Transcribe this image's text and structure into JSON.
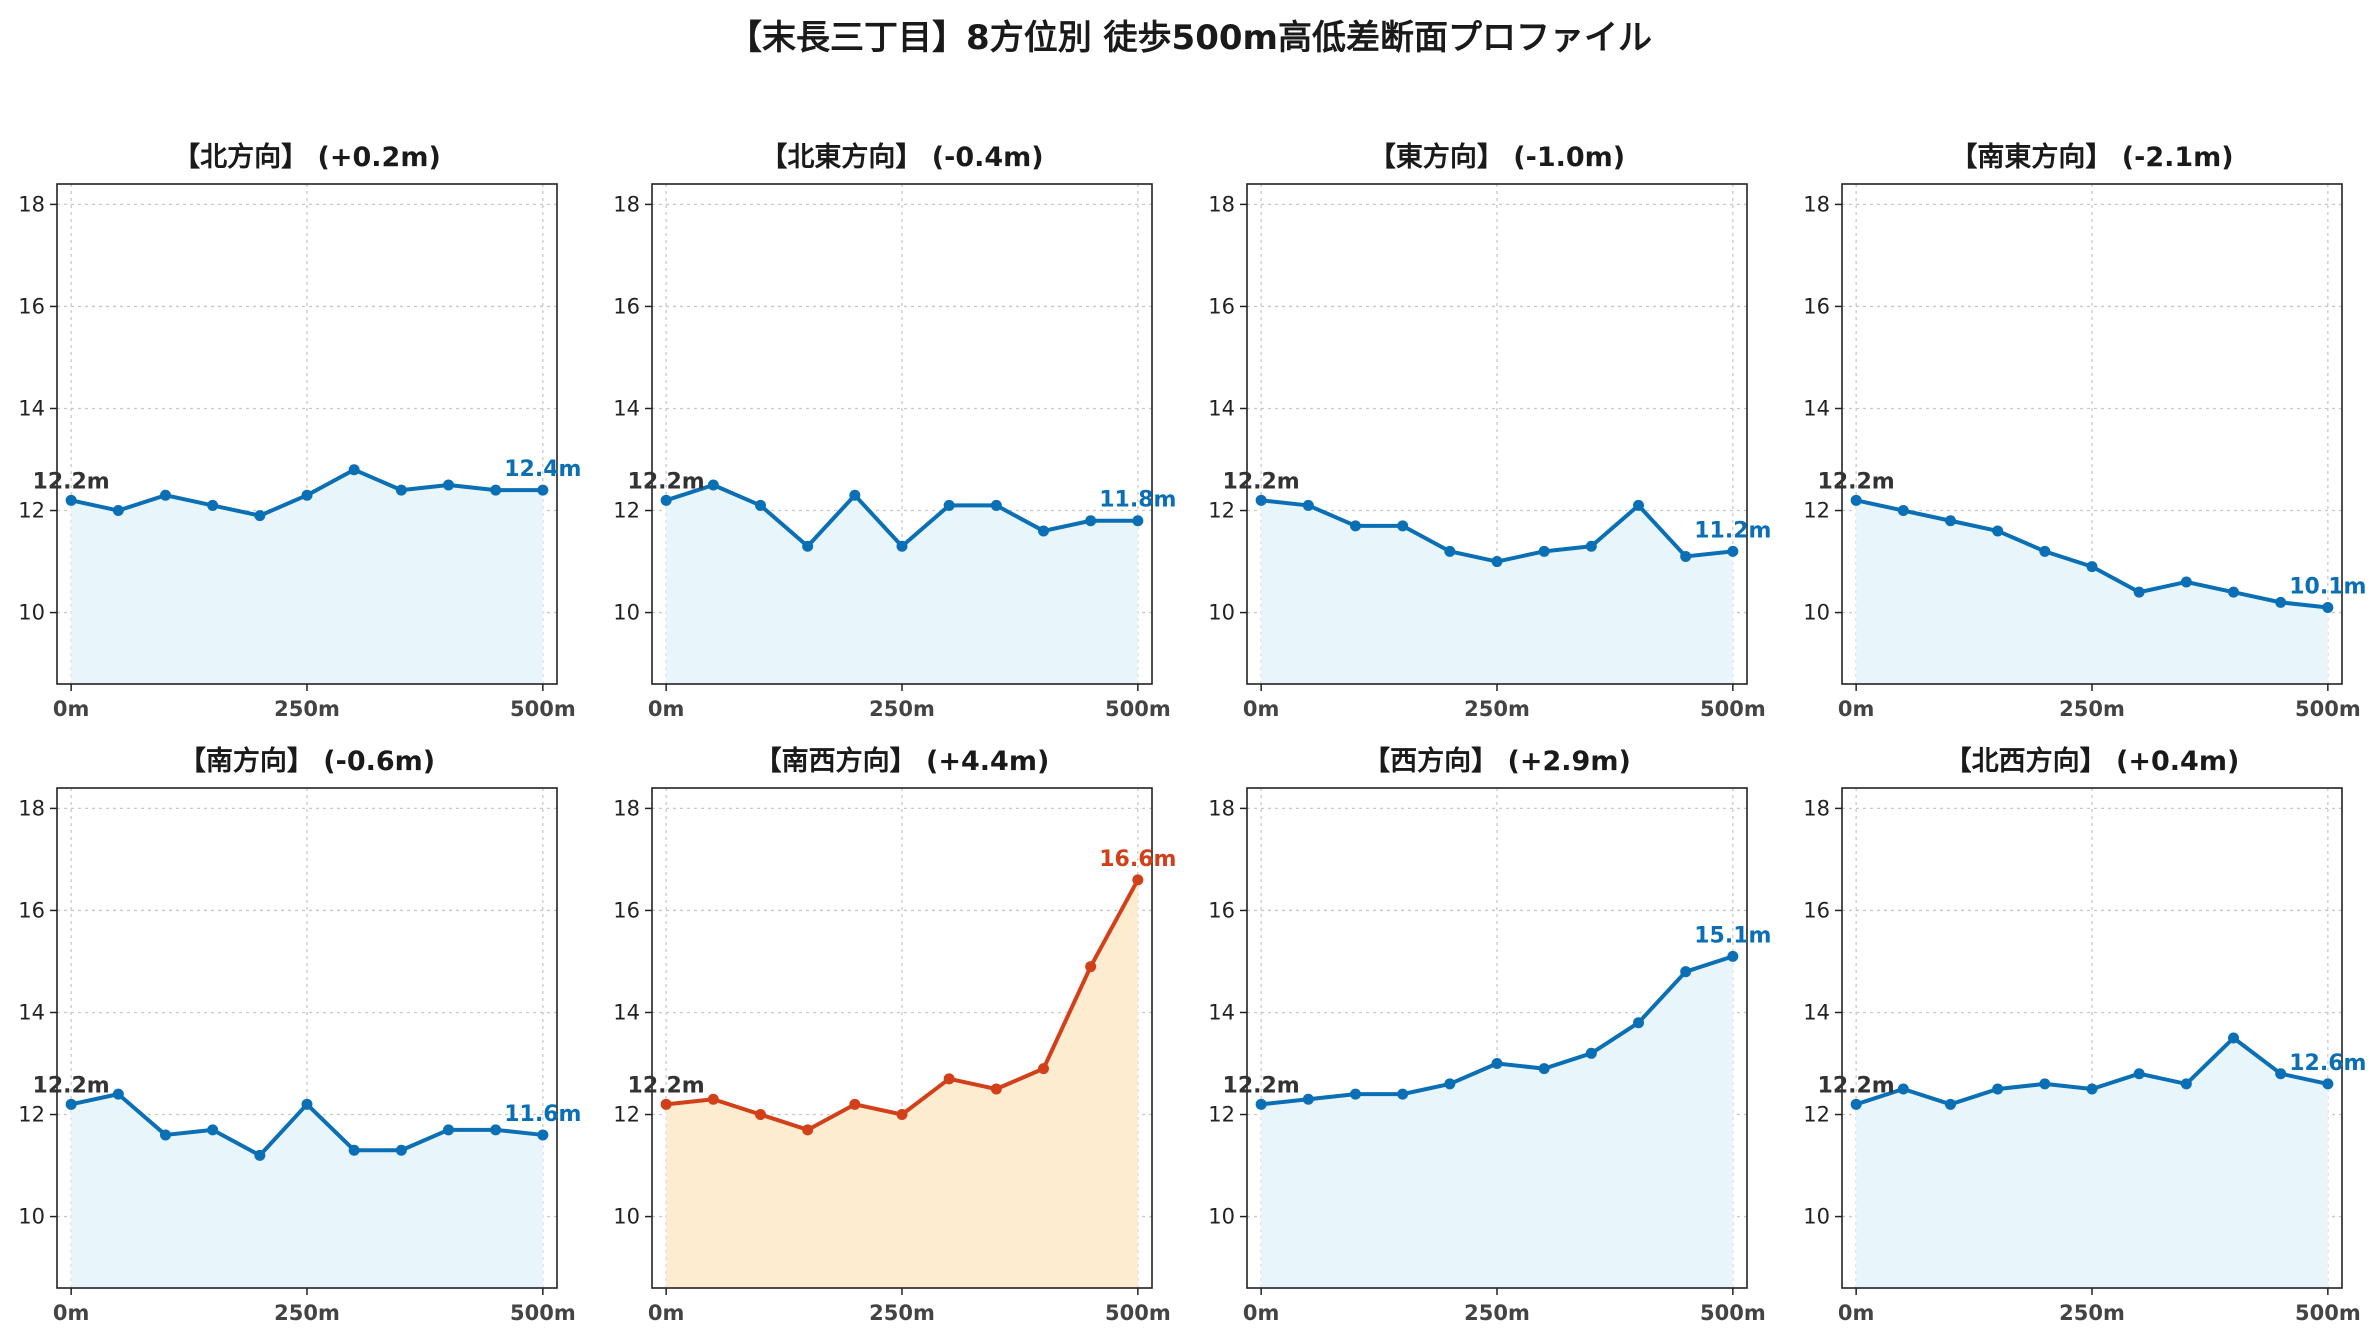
{
  "title": "【末長三丁目】8方位別 徒歩500m高低差断面プロファイル",
  "colors": {
    "normal_line": "#0a6fb4",
    "normal_fill": "#e8f6fb",
    "highlight_line": "#d2401a",
    "highlight_fill": "#fdecd0",
    "start_label": "#333333"
  },
  "chart_data": [
    {
      "type": "area",
      "title": "【北方向】 (+0.2m)",
      "x": [
        0,
        50,
        100,
        150,
        200,
        250,
        300,
        350,
        400,
        450,
        500
      ],
      "values": [
        12.2,
        12.0,
        12.3,
        12.1,
        11.9,
        12.3,
        12.8,
        12.4,
        12.5,
        12.4,
        12.4
      ],
      "start_label": "12.2m",
      "end_label": "12.4m",
      "highlight": false,
      "xticks": [
        0,
        250,
        500
      ],
      "xtick_labels": [
        "0m",
        "250m",
        "500m"
      ],
      "yticks": [
        10,
        12,
        14,
        16,
        18
      ],
      "xlim": [
        -15,
        515
      ],
      "ylim": [
        8.6,
        18.4
      ],
      "grid": true
    },
    {
      "type": "area",
      "title": "【北東方向】 (-0.4m)",
      "x": [
        0,
        50,
        100,
        150,
        200,
        250,
        300,
        350,
        400,
        450,
        500
      ],
      "values": [
        12.2,
        12.5,
        12.1,
        11.3,
        12.3,
        11.3,
        12.1,
        12.1,
        11.6,
        11.8,
        11.8
      ],
      "start_label": "12.2m",
      "end_label": "11.8m",
      "highlight": false,
      "xticks": [
        0,
        250,
        500
      ],
      "xtick_labels": [
        "0m",
        "250m",
        "500m"
      ],
      "yticks": [
        10,
        12,
        14,
        16,
        18
      ],
      "xlim": [
        -15,
        515
      ],
      "ylim": [
        8.6,
        18.4
      ],
      "grid": true
    },
    {
      "type": "area",
      "title": "【東方向】 (-1.0m)",
      "x": [
        0,
        50,
        100,
        150,
        200,
        250,
        300,
        350,
        400,
        450,
        500
      ],
      "values": [
        12.2,
        12.1,
        11.7,
        11.7,
        11.2,
        11.0,
        11.2,
        11.3,
        12.1,
        11.1,
        11.2
      ],
      "start_label": "12.2m",
      "end_label": "11.2m",
      "highlight": false,
      "xticks": [
        0,
        250,
        500
      ],
      "xtick_labels": [
        "0m",
        "250m",
        "500m"
      ],
      "yticks": [
        10,
        12,
        14,
        16,
        18
      ],
      "xlim": [
        -15,
        515
      ],
      "ylim": [
        8.6,
        18.4
      ],
      "grid": true
    },
    {
      "type": "area",
      "title": "【南東方向】 (-2.1m)",
      "x": [
        0,
        50,
        100,
        150,
        200,
        250,
        300,
        350,
        400,
        450,
        500
      ],
      "values": [
        12.2,
        12.0,
        11.8,
        11.6,
        11.2,
        10.9,
        10.4,
        10.6,
        10.4,
        10.2,
        10.1
      ],
      "start_label": "12.2m",
      "end_label": "10.1m",
      "highlight": false,
      "xticks": [
        0,
        250,
        500
      ],
      "xtick_labels": [
        "0m",
        "250m",
        "500m"
      ],
      "yticks": [
        10,
        12,
        14,
        16,
        18
      ],
      "xlim": [
        -15,
        515
      ],
      "ylim": [
        8.6,
        18.4
      ],
      "grid": true
    },
    {
      "type": "area",
      "title": "【南方向】 (-0.6m)",
      "x": [
        0,
        50,
        100,
        150,
        200,
        250,
        300,
        350,
        400,
        450,
        500
      ],
      "values": [
        12.2,
        12.4,
        11.6,
        11.7,
        11.2,
        12.2,
        11.3,
        11.3,
        11.7,
        11.7,
        11.6
      ],
      "start_label": "12.2m",
      "end_label": "11.6m",
      "highlight": false,
      "xticks": [
        0,
        250,
        500
      ],
      "xtick_labels": [
        "0m",
        "250m",
        "500m"
      ],
      "yticks": [
        10,
        12,
        14,
        16,
        18
      ],
      "xlim": [
        -15,
        515
      ],
      "ylim": [
        8.6,
        18.4
      ],
      "grid": true
    },
    {
      "type": "area",
      "title": "【南西方向】 (+4.4m)",
      "x": [
        0,
        50,
        100,
        150,
        200,
        250,
        300,
        350,
        400,
        450,
        500
      ],
      "values": [
        12.2,
        12.3,
        12.0,
        11.7,
        12.2,
        12.0,
        12.7,
        12.5,
        12.9,
        14.9,
        16.6
      ],
      "start_label": "12.2m",
      "end_label": "16.6m",
      "highlight": true,
      "xticks": [
        0,
        250,
        500
      ],
      "xtick_labels": [
        "0m",
        "250m",
        "500m"
      ],
      "yticks": [
        10,
        12,
        14,
        16,
        18
      ],
      "xlim": [
        -15,
        515
      ],
      "ylim": [
        8.6,
        18.4
      ],
      "grid": true
    },
    {
      "type": "area",
      "title": "【西方向】 (+2.9m)",
      "x": [
        0,
        50,
        100,
        150,
        200,
        250,
        300,
        350,
        400,
        450,
        500
      ],
      "values": [
        12.2,
        12.3,
        12.4,
        12.4,
        12.6,
        13.0,
        12.9,
        13.2,
        13.8,
        14.8,
        15.1
      ],
      "start_label": "12.2m",
      "end_label": "15.1m",
      "highlight": false,
      "xticks": [
        0,
        250,
        500
      ],
      "xtick_labels": [
        "0m",
        "250m",
        "500m"
      ],
      "yticks": [
        10,
        12,
        14,
        16,
        18
      ],
      "xlim": [
        -15,
        515
      ],
      "ylim": [
        8.6,
        18.4
      ],
      "grid": true
    },
    {
      "type": "area",
      "title": "【北西方向】 (+0.4m)",
      "x": [
        0,
        50,
        100,
        150,
        200,
        250,
        300,
        350,
        400,
        450,
        500
      ],
      "values": [
        12.2,
        12.5,
        12.2,
        12.5,
        12.6,
        12.5,
        12.8,
        12.6,
        13.5,
        12.8,
        12.6
      ],
      "start_label": "12.2m",
      "end_label": "12.6m",
      "highlight": false,
      "xticks": [
        0,
        250,
        500
      ],
      "xtick_labels": [
        "0m",
        "250m",
        "500m"
      ],
      "yticks": [
        10,
        12,
        14,
        16,
        18
      ],
      "xlim": [
        -15,
        515
      ],
      "ylim": [
        8.6,
        18.4
      ],
      "grid": true
    }
  ]
}
